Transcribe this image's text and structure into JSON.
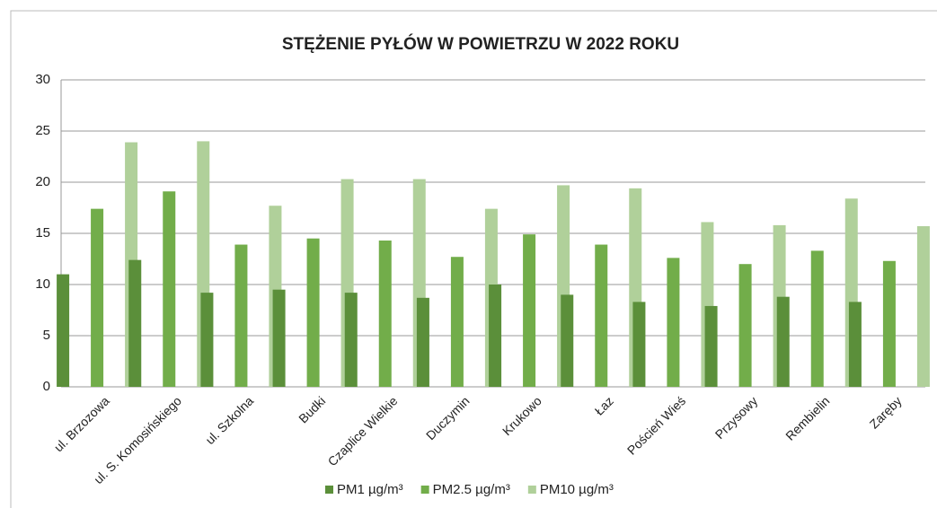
{
  "chart_data": {
    "type": "bar",
    "title": "STĘŻENIE PYŁÓW W POWIETRZU W 2022 ROKU",
    "categories": [
      "ul. Brzozowa",
      "ul. S. Komosińskiego",
      "ul. Szkolna",
      "Budki",
      "Czaplice Wielkie",
      "Duczymin",
      "Krukowo",
      "Łaz",
      "Poścień Wieś",
      "Przysowy",
      "Rembielin",
      "Zaręby"
    ],
    "series": [
      {
        "name": "PM1 µg/m³",
        "color": "#5b8f3a",
        "values": [
          11.0,
          12.4,
          9.2,
          9.5,
          9.2,
          8.7,
          10.0,
          9.0,
          8.3,
          7.9,
          8.8,
          8.3
        ]
      },
      {
        "name": "PM2.5 µg/m³",
        "color": "#72ad4a",
        "values": [
          17.4,
          19.1,
          13.9,
          14.5,
          14.3,
          12.7,
          14.9,
          13.9,
          12.6,
          12.0,
          13.3,
          12.3
        ]
      },
      {
        "name": "PM10 µg/m³",
        "color": "#b0d09a",
        "values": [
          23.9,
          24.0,
          17.7,
          20.3,
          20.3,
          17.4,
          19.7,
          19.4,
          16.1,
          15.8,
          18.4,
          15.7
        ]
      }
    ],
    "ylim": [
      0,
      30
    ],
    "yticks": [
      0,
      5,
      10,
      15,
      20,
      25,
      30
    ],
    "grid": true,
    "legend": "bottom"
  }
}
